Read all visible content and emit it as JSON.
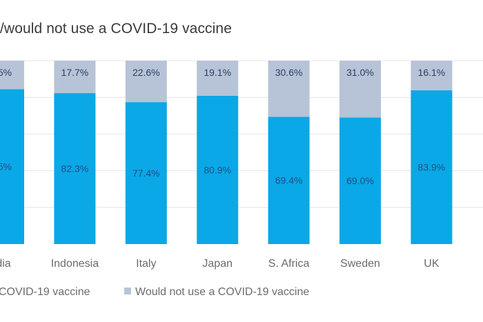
{
  "chart_data": {
    "type": "bar",
    "stacked": true,
    "title": "/would not use a COVID-19 vaccine",
    "categories": [
      "dia",
      "Indonesia",
      "Italy",
      "Japan",
      "S. Africa",
      "Sweden",
      "UK"
    ],
    "category_labels": [
      "dia",
      "Indonesia",
      "Italy",
      "Japan",
      "S. Africa",
      "Sweden",
      "UK"
    ],
    "series": [
      {
        "name": "COVID-19 vaccine",
        "values": [
          84.5,
          82.3,
          77.4,
          80.9,
          69.4,
          69.0,
          83.9
        ],
        "labels": [
          ".5%",
          "82.3%",
          "77.4%",
          "80.9%",
          "69.4%",
          "69.0%",
          "83.9%"
        ],
        "color": "#0aa8e6"
      },
      {
        "name": "Would not use a COVID-19 vaccine",
        "values": [
          15.5,
          17.7,
          22.6,
          19.1,
          30.6,
          31.0,
          16.1
        ],
        "labels": [
          ".5%",
          "17.7%",
          "22.6%",
          "19.1%",
          "30.6%",
          "31.0%",
          "16.1%"
        ],
        "color": "#b7c3d7"
      }
    ],
    "ylim": [
      0,
      100
    ],
    "grid": true,
    "legend_position": "bottom"
  }
}
